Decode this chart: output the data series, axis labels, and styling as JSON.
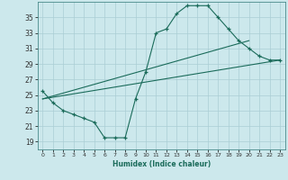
{
  "line1_x": [
    0,
    1,
    2,
    3,
    4,
    5,
    6,
    7,
    8,
    9,
    10,
    11,
    12,
    13,
    14,
    15,
    16,
    17,
    18,
    19,
    20,
    21,
    22,
    23
  ],
  "line1_y": [
    25.5,
    24.0,
    23.0,
    22.5,
    22.0,
    21.5,
    19.5,
    19.5,
    19.5,
    24.5,
    28.0,
    33.0,
    33.5,
    35.5,
    36.5,
    36.5,
    36.5,
    35.0,
    33.5,
    32.0,
    31.0,
    30.0,
    29.5,
    29.5
  ],
  "line2_x": [
    0,
    23
  ],
  "line2_y": [
    24.5,
    29.5
  ],
  "line3_x": [
    0,
    20
  ],
  "line3_y": [
    24.5,
    32.0
  ],
  "color": "#1a6b5a",
  "bg_color": "#cce8ec",
  "grid_color": "#aacdd4",
  "xlabel": "Humidex (Indice chaleur)",
  "xlim": [
    -0.5,
    23.5
  ],
  "ylim": [
    18,
    37
  ],
  "yticks": [
    19,
    21,
    23,
    25,
    27,
    29,
    31,
    33,
    35
  ],
  "xticks": [
    0,
    1,
    2,
    3,
    4,
    5,
    6,
    7,
    8,
    9,
    10,
    11,
    12,
    13,
    14,
    15,
    16,
    17,
    18,
    19,
    20,
    21,
    22,
    23
  ]
}
